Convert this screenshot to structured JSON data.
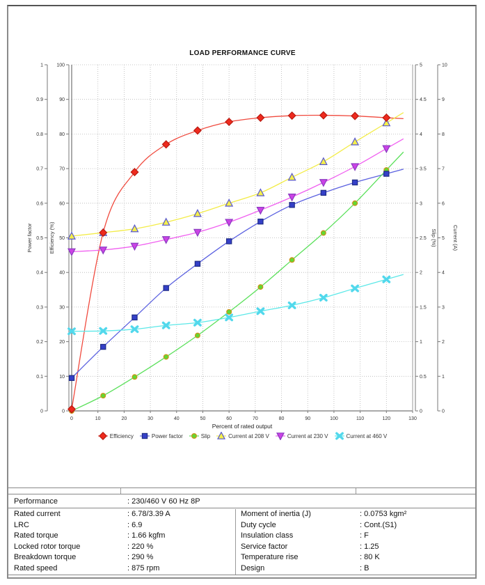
{
  "chart_data": {
    "type": "line",
    "title": "LOAD PERFORMANCE CURVE",
    "xlabel": "Percent of rated output",
    "grid": true,
    "legend_position": "bottom",
    "x_axis": {
      "min": 0,
      "max": 130,
      "step": 10
    },
    "y_axes": [
      {
        "id": "power_factor",
        "label": "Power factor",
        "min": 0,
        "max": 1,
        "step": 0.1,
        "side": "left"
      },
      {
        "id": "efficiency",
        "label": "Efficiency (%)",
        "min": 0,
        "max": 100,
        "step": 10,
        "side": "left"
      },
      {
        "id": "slip",
        "label": "Slip (%)",
        "min": 0,
        "max": 5,
        "step": 0.5,
        "side": "right"
      },
      {
        "id": "current",
        "label": "Current (A)",
        "min": 0,
        "max": 10,
        "step": 1,
        "side": "right"
      }
    ],
    "x": [
      0,
      12,
      24,
      36,
      48,
      60,
      72,
      84,
      96,
      108,
      120
    ],
    "series": [
      {
        "name": "Efficiency",
        "axis": "efficiency",
        "marker": "diamond",
        "line_color": "#f04a3e",
        "fill": "#ee2a1e",
        "stroke": "#b81a10",
        "values": [
          0.5,
          51.5,
          69,
          77,
          81,
          83.5,
          84.7,
          85.3,
          85.4,
          85.2,
          84.7
        ]
      },
      {
        "name": "Power factor",
        "axis": "power_factor",
        "marker": "square",
        "line_color": "#5a60e0",
        "fill": "#3540c8",
        "stroke": "#1f2c85",
        "values": [
          0.095,
          0.185,
          0.27,
          0.355,
          0.425,
          0.49,
          0.547,
          0.595,
          0.63,
          0.66,
          0.685
        ]
      },
      {
        "name": "Slip",
        "axis": "slip",
        "marker": "circle",
        "line_color": "#5ae05a",
        "fill": "#62d832",
        "stroke": "#d09018",
        "values": [
          0,
          0.22,
          0.49,
          0.78,
          1.09,
          1.43,
          1.79,
          2.18,
          2.57,
          3.0,
          3.48
        ]
      },
      {
        "name": "Current at 208 V",
        "axis": "current",
        "marker": "triangle-up",
        "line_color": "#f3ec48",
        "fill": "#f5ef4a",
        "stroke": "#5858d0",
        "values": [
          5.05,
          5.15,
          5.26,
          5.45,
          5.7,
          6.0,
          6.3,
          6.75,
          7.2,
          7.77,
          8.32
        ]
      },
      {
        "name": "Current at 230 V",
        "axis": "current",
        "marker": "triangle-down",
        "line_color": "#f060f0",
        "fill": "#cc42e6",
        "stroke": "#8a3cc0",
        "values": [
          4.6,
          4.65,
          4.76,
          4.95,
          5.16,
          5.45,
          5.8,
          6.18,
          6.6,
          7.06,
          7.58
        ]
      },
      {
        "name": "Current at 460 V",
        "axis": "current",
        "marker": "x",
        "line_color": "#5ce8e8",
        "fill": "#52d8ec",
        "stroke": "#52d8ec",
        "values": [
          2.3,
          2.31,
          2.36,
          2.47,
          2.55,
          2.7,
          2.88,
          3.05,
          3.27,
          3.54,
          3.8
        ]
      }
    ]
  },
  "spec_table": {
    "performance_row": {
      "label": "Performance",
      "value": ": 230/460 V 60 Hz 8P"
    },
    "rows": [
      {
        "label": "Rated current",
        "value": ": 6.78/3.39 A",
        "label2": "Moment of inertia (J)",
        "value2": ": 0.0753 kgm²"
      },
      {
        "label": "LRC",
        "value": ": 6.9",
        "label2": "Duty cycle",
        "value2": ": Cont.(S1)"
      },
      {
        "label": "Rated torque",
        "value": ": 1.66 kgfm",
        "label2": "Insulation class",
        "value2": ": F"
      },
      {
        "label": "Locked rotor torque",
        "value": ": 220 %",
        "label2": "Service factor",
        "value2": ": 1.25"
      },
      {
        "label": "Breakdown torque",
        "value": ": 290 %",
        "label2": "Temperature rise",
        "value2": ": 80 K"
      },
      {
        "label": "Rated speed",
        "value": ": 875 rpm",
        "label2": "Design",
        "value2": ": B"
      }
    ]
  }
}
